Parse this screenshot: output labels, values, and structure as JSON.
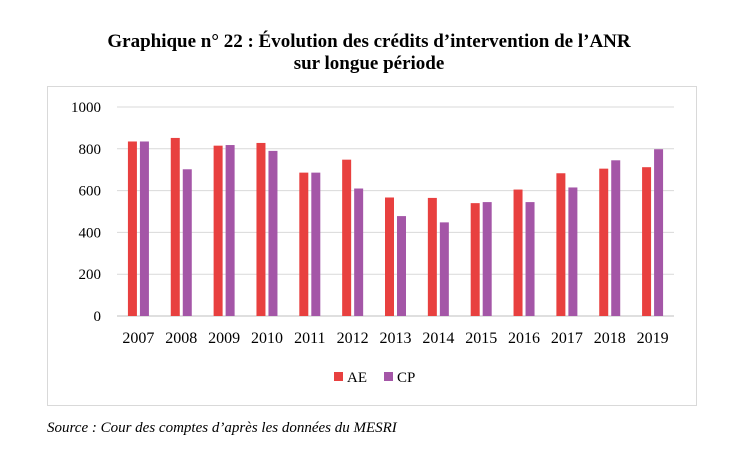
{
  "title": {
    "line1": "Graphique n° 22 : Évolution des crédits d’intervention de l’ANR",
    "line2": "sur longue période"
  },
  "source": "Source : Cour des comptes d’après les données du MESRI",
  "chart_data": {
    "type": "bar",
    "title": "Graphique n° 22 : Évolution des crédits d’intervention de l’ANR sur longue période",
    "categories": [
      "2007",
      "2008",
      "2009",
      "2010",
      "2011",
      "2012",
      "2013",
      "2014",
      "2015",
      "2016",
      "2017",
      "2018",
      "2019"
    ],
    "series": [
      {
        "name": "AE",
        "color": "#e8403f",
        "values": [
          835,
          852,
          815,
          828,
          686,
          748,
          567,
          565,
          540,
          605,
          683,
          705,
          712
        ]
      },
      {
        "name": "CP",
        "color": "#a456a7",
        "values": [
          835,
          702,
          818,
          790,
          686,
          610,
          478,
          448,
          545,
          545,
          615,
          745,
          798
        ]
      }
    ],
    "yticks": [
      "0",
      "200",
      "400",
      "600",
      "800",
      "1000"
    ],
    "ylim": [
      0,
      1000
    ],
    "grid": true,
    "legend_position": "bottom"
  }
}
